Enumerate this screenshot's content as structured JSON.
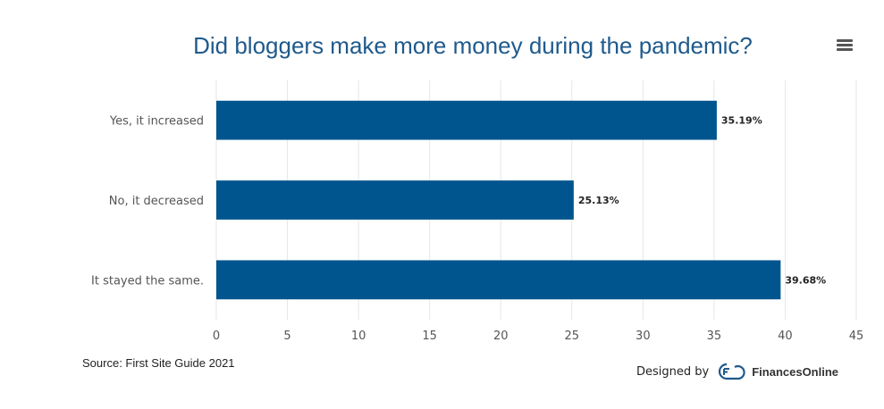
{
  "chart_data": {
    "type": "bar",
    "orientation": "horizontal",
    "title": "Did bloggers make more money during the pandemic?",
    "categories": [
      "Yes, it increased",
      "No, it decreased",
      "It stayed the same."
    ],
    "values": [
      35.19,
      25.13,
      39.68
    ],
    "data_labels": [
      "35.19%",
      "25.13%",
      "39.68%"
    ],
    "xlim": [
      0,
      45
    ],
    "xticks": [
      "0",
      "5",
      "10",
      "15",
      "20",
      "25",
      "30",
      "35",
      "40",
      "45"
    ],
    "grid": true,
    "bar_color": "#00558f"
  },
  "source": "Source: First Site Guide 2021",
  "credit": {
    "designed_by": "Designed by",
    "brand": "FinancesOnline",
    "logo_icon": "financesonline-logo-icon"
  },
  "menu": {
    "icon": "hamburger-menu-icon"
  }
}
